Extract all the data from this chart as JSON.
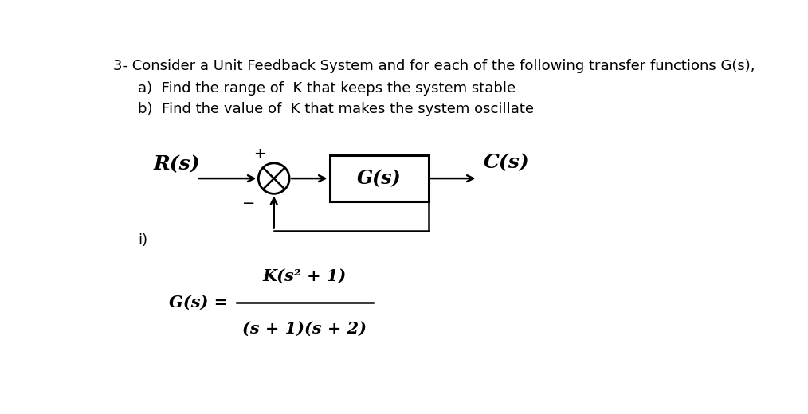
{
  "bg_color": "#ffffff",
  "title_line1": "3- Consider a Unit Feedback System and for each of the following transfer functions G(s),",
  "title_line2a": "a)  Find the range of  K that keeps the system stable",
  "title_line2b": "b)  Find the value of  K that makes the system oscillate",
  "label_Rs": "R(s)",
  "label_Cs": "C(s)",
  "label_Gs": "G(s)",
  "label_plus": "+",
  "label_minus": "−",
  "label_i": "i)",
  "formula_Gs_eq": "G(s) =",
  "formula_num": "K(s² + 1)",
  "formula_den": "(s + 1)(s + 2)",
  "font_size_title": 13.0,
  "font_size_diagram": 16,
  "font_size_formula": 15
}
